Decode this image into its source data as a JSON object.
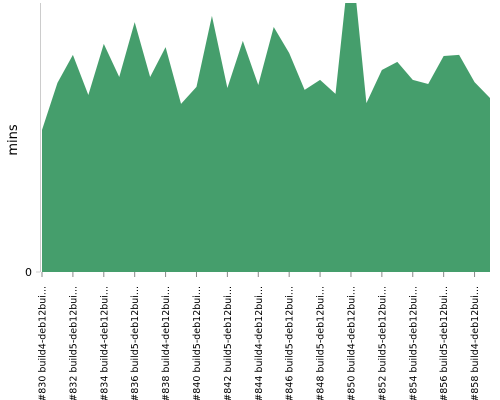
{
  "chart_data": {
    "type": "area",
    "y_label": "mins",
    "color": "#459e6c",
    "categories": [
      "#830 build4-deb12bui...",
      null,
      "#832 build5-deb12bui...",
      null,
      "#834 build4-deb12bui...",
      null,
      "#836 build5-deb12bui...",
      null,
      "#838 build4-deb12bui...",
      null,
      "#840 build5-deb12bui...",
      null,
      "#842 build5-deb12bui...",
      null,
      "#844 build4-deb12bui...",
      null,
      "#846 build5-deb12bui...",
      null,
      "#848 build5-deb12bui...",
      null,
      "#850 build4-deb12bui...",
      null,
      "#852 build5-deb12bui...",
      null,
      "#854 build5-deb12bui...",
      null,
      "#856 build5-deb12bui...",
      null,
      "#858 build4-deb12bui...",
      null
    ],
    "values": [
      52.8,
      70.3,
      80.7,
      65.8,
      84.8,
      72.5,
      92.9,
      72.5,
      83.6,
      62.5,
      68.8,
      95.2,
      68.4,
      85.9,
      69.5,
      91.1,
      81.4,
      67.7,
      71.4,
      66.2,
      120,
      62.8,
      75.1,
      78.1,
      71.4,
      69.9,
      80.3,
      80.7,
      70.6,
      64.7
    ],
    "ylim": [
      0,
      100
    ],
    "yticks": [
      0
    ]
  }
}
